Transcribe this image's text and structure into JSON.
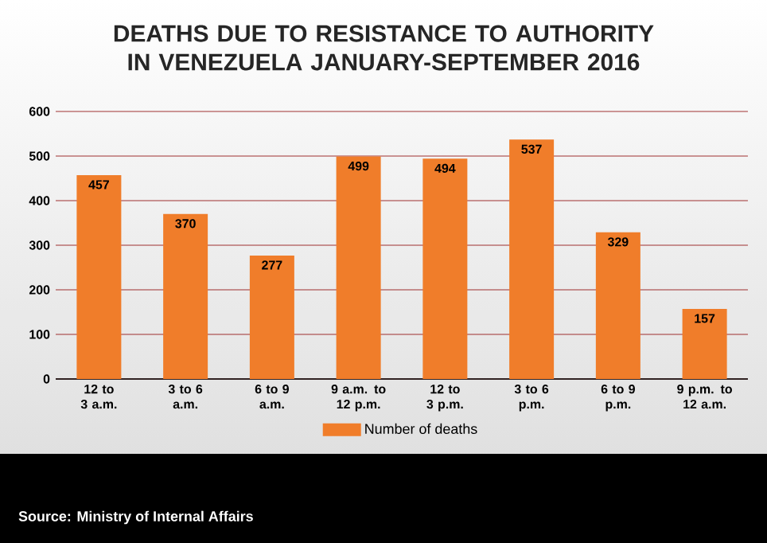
{
  "chart_data": {
    "type": "bar",
    "title": "DEATHS DUE TO RESISTANCE TO AUTHORITY IN VENEZUELA JANUARY-SEPTEMBER 2016",
    "categories": [
      "12 to 3 a.m.",
      "3 to 6 a.m.",
      "6 to 9 a.m.",
      "9 a.m. to 12 p.m.",
      "12 to 3 p.m.",
      "3 to 6 p.m.",
      "6 to 9 p.m.",
      "9 p.m. to 12 a.m."
    ],
    "series": [
      {
        "name": "Number of deaths",
        "color": "#f07d2a",
        "values": [
          457,
          370,
          277,
          499,
          494,
          537,
          329,
          157
        ]
      }
    ],
    "ylim": [
      0,
      600
    ],
    "yticks": [
      0,
      100,
      200,
      300,
      400,
      500,
      600
    ],
    "grid": "y",
    "legend": "bottom",
    "data_labels": true,
    "annotations": [
      "Source: Ministry of Internal Affairs"
    ]
  }
}
